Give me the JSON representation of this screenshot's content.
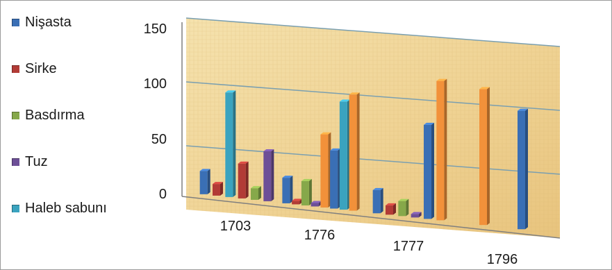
{
  "colors": {
    "series": [
      "#3a6fb5",
      "#b23b36",
      "#86a84a",
      "#6d4f97",
      "#3aa3bf",
      "#f2913a"
    ],
    "wall_light": "#f3dca4",
    "wall_dark": "#e6c47c",
    "grid": "#7a9fb0",
    "axis": "#7f7f7f"
  },
  "legend": {
    "items": [
      {
        "label": "Nişasta",
        "color": "#3a6fb5"
      },
      {
        "label": "Sirke",
        "color": "#b23b36"
      },
      {
        "label": "Basdırma",
        "color": "#86a84a"
      },
      {
        "label": "Tuz",
        "color": "#6d4f97"
      },
      {
        "label": "Haleb sabunı",
        "color": "#3aa3bf"
      }
    ]
  },
  "chart_data": {
    "type": "bar",
    "style": "3d-clustered-column",
    "categories": [
      "1703",
      "1776",
      "1777",
      "1796"
    ],
    "ylim": [
      0,
      150
    ],
    "yticks": [
      "0",
      "50",
      "100",
      "150"
    ],
    "grid": true,
    "legend_position": "left",
    "bars": [
      {
        "category": "1703",
        "series": "Nişasta",
        "color": "#3a6fb5",
        "value": 20
      },
      {
        "category": "1703",
        "series": "Sirke",
        "color": "#b23b36",
        "value": 10
      },
      {
        "category": "1703",
        "series": "Haleb sabunı",
        "color": "#3aa3bf",
        "value": 90
      },
      {
        "category": "1703",
        "series": "Sirke",
        "color": "#b23b36",
        "value": 30
      },
      {
        "category": "1703",
        "series": "Basdırma",
        "color": "#86a84a",
        "value": 10
      },
      {
        "category": "1703",
        "series": "Tuz",
        "color": "#6d4f97",
        "value": 43
      },
      {
        "category": "1776",
        "series": "Nişasta",
        "color": "#3a6fb5",
        "value": 22
      },
      {
        "category": "1776",
        "series": "Sirke",
        "color": "#b23b36",
        "value": 3
      },
      {
        "category": "1776",
        "series": "Basdırma",
        "color": "#86a84a",
        "value": 21
      },
      {
        "category": "1776",
        "series": "Tuz",
        "color": "#6d4f97",
        "value": 3
      },
      {
        "category": "1776",
        "series": "",
        "color": "#f2913a",
        "value": 63
      },
      {
        "category": "1776",
        "series": "Nişasta",
        "color": "#3a6fb5",
        "value": 50
      },
      {
        "category": "1776",
        "series": "Haleb sabunı",
        "color": "#3aa3bf",
        "value": 93
      },
      {
        "category": "1776",
        "series": "",
        "color": "#f2913a",
        "value": 100
      },
      {
        "category": "1777",
        "series": "Nişasta",
        "color": "#3a6fb5",
        "value": 20
      },
      {
        "category": "1777",
        "series": "Sirke",
        "color": "#b23b36",
        "value": 8
      },
      {
        "category": "1777",
        "series": "Basdırma",
        "color": "#86a84a",
        "value": 13
      },
      {
        "category": "1777",
        "series": "Tuz",
        "color": "#6d4f97",
        "value": 3
      },
      {
        "category": "1777",
        "series": "Nişasta",
        "color": "#3a6fb5",
        "value": 81
      },
      {
        "category": "1777",
        "series": "",
        "color": "#f2913a",
        "value": 120
      },
      {
        "category": "1796",
        "series": "",
        "color": "#f2913a",
        "value": 117
      },
      {
        "category": "1796",
        "series": "Nişasta",
        "color": "#3a6fb5",
        "value": 102
      }
    ]
  }
}
